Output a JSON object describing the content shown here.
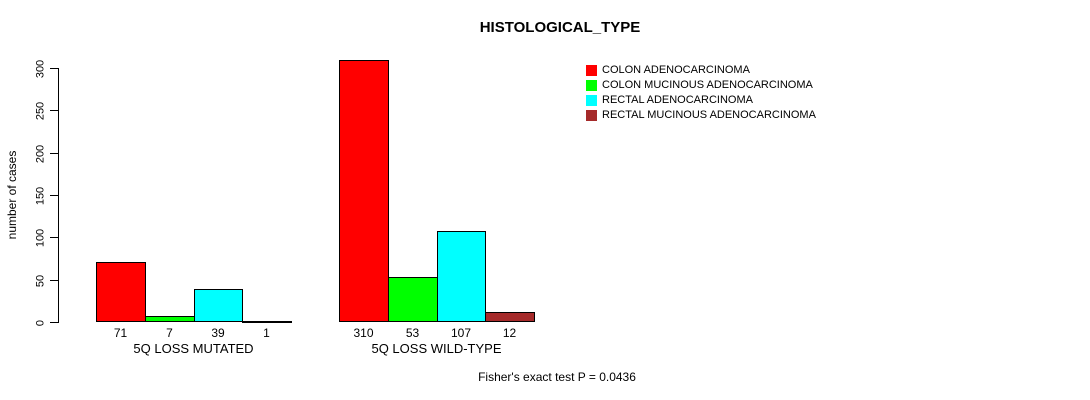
{
  "chart_data": {
    "type": "bar",
    "title": "HISTOLOGICAL_TYPE",
    "ylabel": "number of cases",
    "xlabel": "",
    "ylim": [
      0,
      300
    ],
    "yticks": [
      0,
      50,
      100,
      150,
      200,
      250,
      300
    ],
    "categories": [
      "5Q LOSS MUTATED",
      "5Q LOSS WILD-TYPE"
    ],
    "series": [
      {
        "name": "COLON ADENOCARCINOMA",
        "color": "#FF0000",
        "values": [
          71,
          310
        ]
      },
      {
        "name": "COLON MUCINOUS ADENOCARCINOMA",
        "color": "#00FF00",
        "values": [
          7,
          53
        ]
      },
      {
        "name": "RECTAL ADENOCARCINOMA",
        "color": "#00FFFF",
        "values": [
          39,
          107
        ]
      },
      {
        "name": "RECTAL MUCINOUS ADENOCARCINOMA",
        "color": "#A52A2A",
        "values": [
          1,
          12
        ]
      }
    ],
    "bar_value_labels": true,
    "legend_position": "top-right",
    "grid": false,
    "annotation": "Fisher's exact test P = 0.0436"
  }
}
